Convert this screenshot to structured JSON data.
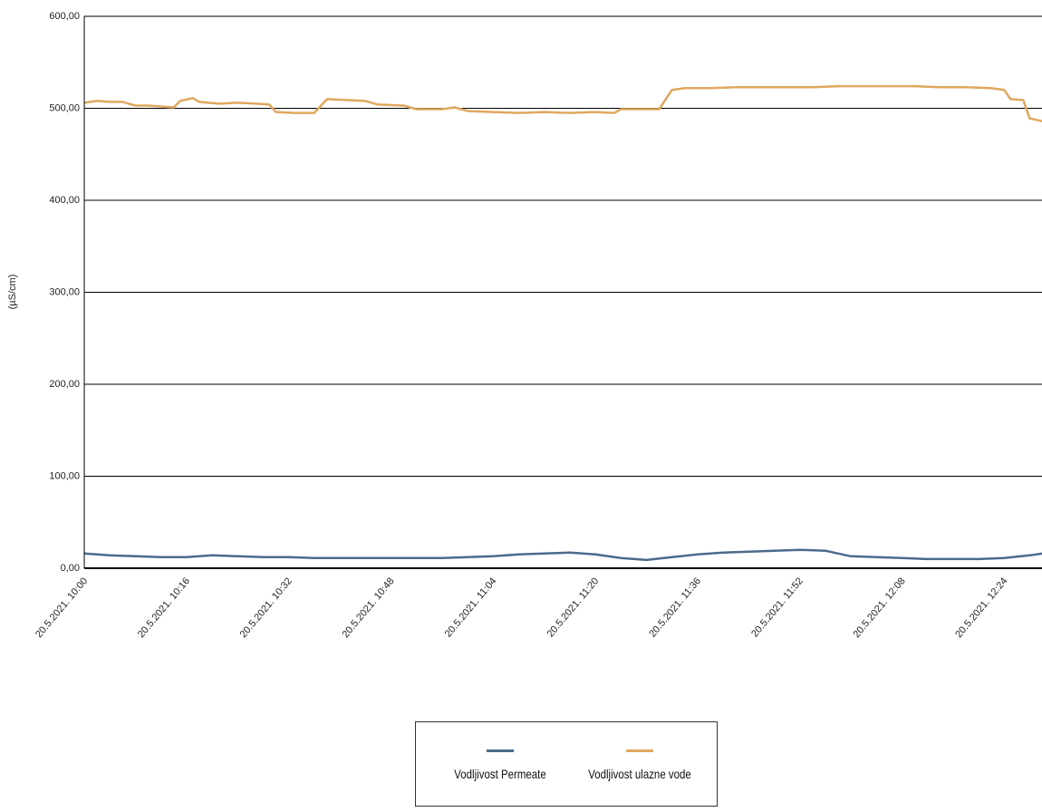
{
  "chart_data": {
    "type": "line",
    "ylabel": "(µS/cm)",
    "ylim": [
      0,
      600
    ],
    "yticks": [
      "0,00",
      "100,00",
      "200,00",
      "300,00",
      "400,00",
      "500,00",
      "600,00"
    ],
    "xticks": [
      "20.5.2021. 10:00",
      "20.5.2021. 10:16",
      "20.5.2021. 10:32",
      "20.5.2021. 10:48",
      "20.5.2021. 11:04",
      "20.5.2021. 11:20",
      "20.5.2021. 11:36",
      "20.5.2021. 11:52",
      "20.5.2021. 12:08",
      "20.5.2021. 12:24"
    ],
    "x_range_minutes": [
      0,
      150
    ],
    "grid": true,
    "legend_position": "bottom",
    "series": [
      {
        "name": "Vodljivost Permeate",
        "color": "#4a6b8c",
        "points": [
          [
            0,
            16
          ],
          [
            4,
            14
          ],
          [
            8,
            13
          ],
          [
            12,
            12
          ],
          [
            16,
            12
          ],
          [
            20,
            14
          ],
          [
            24,
            13
          ],
          [
            28,
            12
          ],
          [
            32,
            12
          ],
          [
            36,
            11
          ],
          [
            40,
            11
          ],
          [
            44,
            11
          ],
          [
            48,
            11
          ],
          [
            52,
            11
          ],
          [
            56,
            11
          ],
          [
            60,
            12
          ],
          [
            64,
            13
          ],
          [
            68,
            15
          ],
          [
            72,
            16
          ],
          [
            76,
            17
          ],
          [
            80,
            15
          ],
          [
            84,
            11
          ],
          [
            88,
            9
          ],
          [
            92,
            12
          ],
          [
            96,
            15
          ],
          [
            100,
            17
          ],
          [
            104,
            18
          ],
          [
            108,
            19
          ],
          [
            112,
            20
          ],
          [
            116,
            19
          ],
          [
            120,
            13
          ],
          [
            124,
            12
          ],
          [
            128,
            11
          ],
          [
            132,
            10
          ],
          [
            136,
            10
          ],
          [
            140,
            10
          ],
          [
            144,
            11
          ],
          [
            148,
            14
          ],
          [
            150,
            16
          ]
        ]
      },
      {
        "name": "Vodljivost ulazne vode",
        "color": "#e0a860",
        "points": [
          [
            0,
            506
          ],
          [
            2,
            508
          ],
          [
            4,
            507
          ],
          [
            6,
            507
          ],
          [
            8,
            503
          ],
          [
            10,
            503
          ],
          [
            12,
            502
          ],
          [
            14,
            501
          ],
          [
            15,
            508
          ],
          [
            17,
            511
          ],
          [
            18,
            507
          ],
          [
            21,
            505
          ],
          [
            24,
            506
          ],
          [
            27,
            505
          ],
          [
            29,
            504
          ],
          [
            30,
            496
          ],
          [
            33,
            495
          ],
          [
            36,
            495
          ],
          [
            38,
            510
          ],
          [
            41,
            509
          ],
          [
            44,
            508
          ],
          [
            46,
            504
          ],
          [
            50,
            503
          ],
          [
            52,
            499
          ],
          [
            56,
            499
          ],
          [
            58,
            501
          ],
          [
            60,
            497
          ],
          [
            64,
            496
          ],
          [
            68,
            495
          ],
          [
            72,
            496
          ],
          [
            76,
            495
          ],
          [
            80,
            496
          ],
          [
            83,
            495
          ],
          [
            84,
            499
          ],
          [
            87,
            499
          ],
          [
            90,
            499
          ],
          [
            92,
            520
          ],
          [
            94,
            522
          ],
          [
            98,
            522
          ],
          [
            102,
            523
          ],
          [
            106,
            523
          ],
          [
            110,
            523
          ],
          [
            114,
            523
          ],
          [
            118,
            524
          ],
          [
            122,
            524
          ],
          [
            126,
            524
          ],
          [
            130,
            524
          ],
          [
            134,
            523
          ],
          [
            138,
            523
          ],
          [
            142,
            522
          ],
          [
            144,
            520
          ],
          [
            145,
            510
          ],
          [
            147,
            509
          ],
          [
            148,
            489
          ],
          [
            150,
            486
          ]
        ]
      }
    ]
  }
}
